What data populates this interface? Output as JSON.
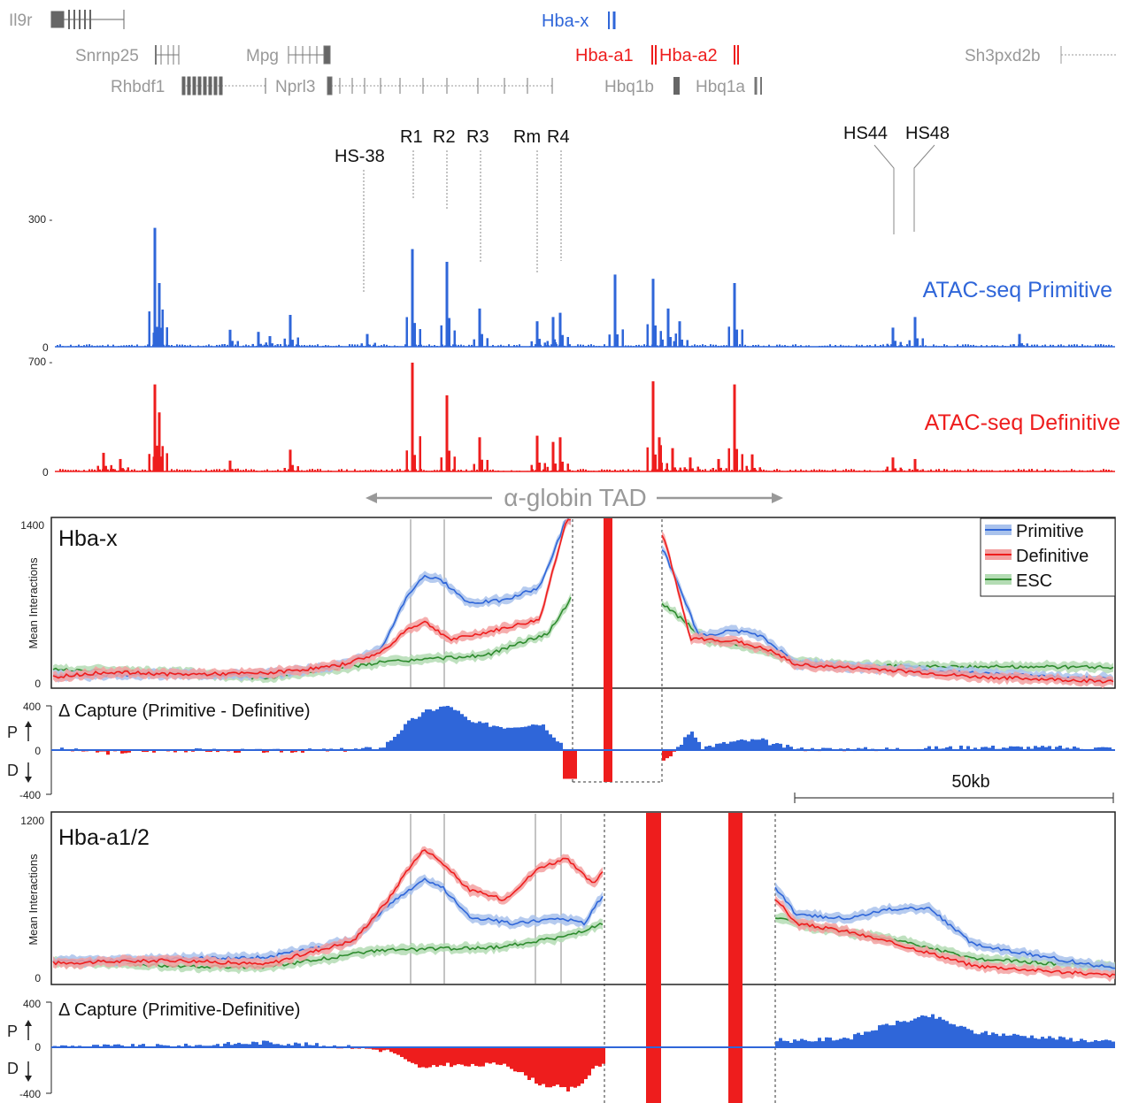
{
  "colors": {
    "primitive": "#2f66d9",
    "definitive": "#ee1d1d",
    "esc": "#2e8b2e",
    "gene_gray": "#888888",
    "gene_dark": "#555555",
    "label_gray": "#999999"
  },
  "genes": [
    {
      "name": "Il9r",
      "color": "gray"
    },
    {
      "name": "Snrnp25",
      "color": "gray"
    },
    {
      "name": "Mpg",
      "color": "gray"
    },
    {
      "name": "Rhbdf1",
      "color": "gray"
    },
    {
      "name": "Nprl3",
      "color": "gray"
    },
    {
      "name": "Hba-x",
      "color": "blue"
    },
    {
      "name": "Hba-a1",
      "color": "red"
    },
    {
      "name": "Hba-a2",
      "color": "red"
    },
    {
      "name": "Hbq1b",
      "color": "gray"
    },
    {
      "name": "Hbq1a",
      "color": "gray"
    },
    {
      "name": "Sh3pxd2b",
      "color": "gray"
    }
  ],
  "elements": [
    "HS-38",
    "R1",
    "R2",
    "R3",
    "Rm",
    "R4",
    "HS44",
    "HS48"
  ],
  "tad_label": "α-globin TAD",
  "scale_label": "50kb",
  "chart_data": [
    {
      "type": "bar",
      "title": "ATAC-seq Primitive",
      "ylim": [
        0,
        300
      ],
      "ytick_labels": [
        "300 -",
        "0"
      ],
      "peaks": [
        [
          175,
          280
        ],
        [
          180,
          150
        ],
        [
          260,
          40
        ],
        [
          292,
          35
        ],
        [
          305,
          25
        ],
        [
          328,
          75
        ],
        [
          415,
          30
        ],
        [
          466,
          230
        ],
        [
          505,
          200
        ],
        [
          542,
          90
        ],
        [
          607,
          60
        ],
        [
          625,
          70
        ],
        [
          633,
          80
        ],
        [
          695,
          170
        ],
        [
          738,
          160
        ],
        [
          755,
          90
        ],
        [
          768,
          60
        ],
        [
          830,
          150
        ],
        [
          1009,
          45
        ],
        [
          1034,
          70
        ],
        [
          1152,
          30
        ]
      ]
    },
    {
      "type": "bar",
      "title": "ATAC-seq Definitive",
      "ylim": [
        0,
        700
      ],
      "ytick_labels": [
        "700 -",
        "0"
      ],
      "peaks": [
        [
          117,
          120
        ],
        [
          136,
          80
        ],
        [
          175,
          560
        ],
        [
          180,
          380
        ],
        [
          260,
          70
        ],
        [
          328,
          140
        ],
        [
          466,
          700
        ],
        [
          505,
          490
        ],
        [
          542,
          220
        ],
        [
          607,
          230
        ],
        [
          625,
          190
        ],
        [
          633,
          220
        ],
        [
          738,
          580
        ],
        [
          745,
          220
        ],
        [
          760,
          150
        ],
        [
          780,
          90
        ],
        [
          812,
          80
        ],
        [
          830,
          560
        ],
        [
          850,
          110
        ],
        [
          1009,
          90
        ],
        [
          1034,
          80
        ]
      ]
    },
    {
      "type": "line",
      "title": "Hba-x",
      "ylabel": "Mean Interactions",
      "ylim": [
        0,
        1400
      ],
      "ytick_labels": [
        "1400",
        "0"
      ],
      "legend": [
        "Primitive",
        "Definitive",
        "ESC"
      ],
      "legend_position": "top-right",
      "series": [
        {
          "name": "Primitive",
          "points": [
            [
              60,
              90
            ],
            [
              180,
              100
            ],
            [
              300,
              100
            ],
            [
              380,
              170
            ],
            [
              430,
              300
            ],
            [
              460,
              760
            ],
            [
              480,
              930
            ],
            [
              500,
              880
            ],
            [
              530,
              700
            ],
            [
              570,
              720
            ],
            [
              610,
              830
            ],
            [
              640,
              1400
            ],
            [
              750,
              1140
            ],
            [
              790,
              420
            ],
            [
              830,
              470
            ],
            [
              860,
              420
            ],
            [
              900,
              190
            ],
            [
              1000,
              150
            ],
            [
              1100,
              110
            ],
            [
              1260,
              60
            ]
          ]
        },
        {
          "name": "Definitive",
          "points": [
            [
              60,
              80
            ],
            [
              120,
              120
            ],
            [
              200,
              100
            ],
            [
              300,
              110
            ],
            [
              380,
              170
            ],
            [
              430,
              280
            ],
            [
              460,
              480
            ],
            [
              480,
              540
            ],
            [
              510,
              390
            ],
            [
              560,
              470
            ],
            [
              610,
              560
            ],
            [
              640,
              1400
            ],
            [
              750,
              1260
            ],
            [
              780,
              400
            ],
            [
              830,
              380
            ],
            [
              870,
              300
            ],
            [
              900,
              180
            ],
            [
              1000,
              140
            ],
            [
              1100,
              80
            ],
            [
              1260,
              40
            ]
          ]
        },
        {
          "name": "ESC",
          "points": [
            [
              60,
              140
            ],
            [
              180,
              120
            ],
            [
              300,
              70
            ],
            [
              430,
              200
            ],
            [
              550,
              260
            ],
            [
              620,
              450
            ],
            [
              648,
              770
            ],
            [
              748,
              700
            ],
            [
              800,
              380
            ],
            [
              860,
              310
            ],
            [
              900,
              200
            ],
            [
              1000,
              170
            ],
            [
              1260,
              160
            ]
          ]
        }
      ]
    },
    {
      "type": "bar",
      "title": "Δ Capture (Primitive - Definitive)",
      "ylim": [
        -400,
        400
      ],
      "ytick_labels": [
        "400",
        "0",
        "-400"
      ],
      "pd_labels": [
        "P",
        "D"
      ]
    },
    {
      "type": "line",
      "title": "Hba-a1/2",
      "ylabel": "Mean Interactions",
      "ylim": [
        0,
        1200
      ],
      "ytick_labels": [
        "1200",
        "0"
      ],
      "series": [
        {
          "name": "Primitive",
          "points": [
            [
              60,
              150
            ],
            [
              180,
              170
            ],
            [
              300,
              180
            ],
            [
              400,
              300
            ],
            [
              440,
              560
            ],
            [
              480,
              730
            ],
            [
              500,
              680
            ],
            [
              530,
              470
            ],
            [
              580,
              420
            ],
            [
              630,
              460
            ],
            [
              660,
              420
            ],
            [
              683,
              640
            ],
            [
              876,
              680
            ],
            [
              900,
              480
            ],
            [
              960,
              460
            ],
            [
              1000,
              520
            ],
            [
              1050,
              530
            ],
            [
              1100,
              270
            ],
            [
              1260,
              100
            ]
          ]
        },
        {
          "name": "Definitive",
          "points": [
            [
              60,
              140
            ],
            [
              200,
              160
            ],
            [
              300,
              130
            ],
            [
              400,
              300
            ],
            [
              440,
              600
            ],
            [
              460,
              800
            ],
            [
              480,
              950
            ],
            [
              500,
              850
            ],
            [
              530,
              660
            ],
            [
              570,
              590
            ],
            [
              610,
              820
            ],
            [
              640,
              880
            ],
            [
              670,
              700
            ],
            [
              683,
              810
            ],
            [
              876,
              600
            ],
            [
              900,
              420
            ],
            [
              960,
              360
            ],
            [
              1040,
              230
            ],
            [
              1100,
              120
            ],
            [
              1260,
              50
            ]
          ]
        },
        {
          "name": "ESC",
          "points": [
            [
              60,
              150
            ],
            [
              200,
              120
            ],
            [
              300,
              110
            ],
            [
              430,
              230
            ],
            [
              560,
              250
            ],
            [
              640,
              330
            ],
            [
              683,
              420
            ],
            [
              876,
              460
            ],
            [
              920,
              390
            ],
            [
              1000,
              320
            ],
            [
              1100,
              170
            ],
            [
              1260,
              110
            ]
          ]
        }
      ]
    },
    {
      "type": "bar",
      "title": "Δ Capture (Primitive-Definitive)",
      "ylim": [
        -400,
        400
      ],
      "ytick_labels": [
        "400",
        "0",
        "-400"
      ],
      "pd_labels": [
        "P",
        "D"
      ]
    }
  ]
}
